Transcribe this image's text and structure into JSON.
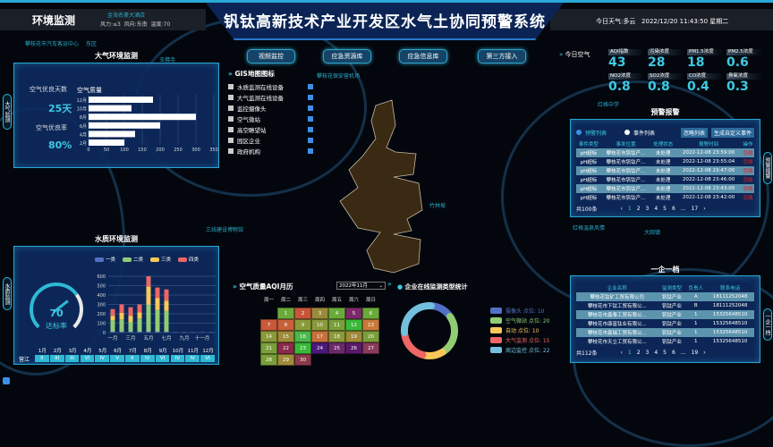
{
  "header": {
    "section": "环境监测",
    "weather": "风力:≤3  风向:东南  温度:70",
    "title": "钒钛高新技术产业开发区水气土协同预警系统",
    "today": "今日天气:多云   2022/12/20 11:43:50 星期二"
  },
  "nav": [
    "视频监控",
    "应急资源库",
    "应急信息库",
    "第三方接入"
  ],
  "gis": {
    "title": "GIS地图图标",
    "items": [
      "水质监测在线设备",
      "大气监测在线设备",
      "监控摄像头",
      "空气微站",
      "高空瞭望站",
      "园区企业",
      "政府机构"
    ]
  },
  "air_panel": {
    "title": "大气环境监测",
    "side_tab": "大气监测",
    "good_days_label": "空气优良天数",
    "good_days": "25天",
    "good_rate_label": "空气优良率",
    "good_rate": "80%"
  },
  "chart_data": [
    {
      "type": "bar",
      "orientation": "horizontal",
      "title": "空气质量",
      "categories": [
        "12月",
        "10月",
        "8月",
        "6月",
        "4月",
        "2月"
      ],
      "values": [
        180,
        120,
        300,
        200,
        130,
        100
      ],
      "xlim": [
        0,
        350
      ],
      "xticks": [
        "0",
        "50",
        "100",
        "150",
        "200",
        "250",
        "300",
        "350"
      ],
      "grid": true
    },
    {
      "type": "bar",
      "stacked": true,
      "categories": [
        "1月",
        "2月",
        "3月",
        "4月",
        "5月",
        "6月",
        "7月",
        "8月",
        "9月",
        "10月",
        "11月",
        "12月"
      ],
      "xtick_labels": [
        "一月",
        "三月",
        "五月",
        "七月",
        "九月",
        "十一月"
      ],
      "ylim": [
        0,
        600
      ],
      "yticks": [
        "0",
        "100",
        "200",
        "300",
        "400",
        "500",
        "600"
      ],
      "legend": "top",
      "series": [
        {
          "name": "一类",
          "color": "#5470c6",
          "values": [
            10,
            10,
            10,
            10,
            10,
            10,
            10,
            5,
            5,
            5,
            5,
            5
          ]
        },
        {
          "name": "二类",
          "color": "#91cc75",
          "values": [
            120,
            130,
            100,
            140,
            290,
            230,
            220,
            0,
            0,
            0,
            0,
            0
          ]
        },
        {
          "name": "三类",
          "color": "#fac858",
          "values": [
            50,
            70,
            70,
            65,
            190,
            130,
            110,
            0,
            0,
            0,
            0,
            0
          ]
        },
        {
          "name": "四类",
          "color": "#ee6666",
          "values": [
            70,
            90,
            90,
            85,
            110,
            110,
            120,
            0,
            0,
            0,
            0,
            0
          ]
        }
      ]
    },
    {
      "type": "pie",
      "donut": true,
      "title": "企业在线监测类型统计",
      "legend": "right",
      "categories": [
        "摄像头",
        "空气微站",
        "自动",
        "大气监测",
        "周边监控"
      ],
      "values": [
        10,
        20,
        10,
        15,
        22
      ],
      "labels": [
        "摄像头 点位: 10",
        "空气微站 点位: 20",
        "自动 点位: 10",
        "大气监测 点位: 15",
        "周边监控 点位: 22"
      ],
      "colors": [
        "#5470c6",
        "#91cc75",
        "#fac858",
        "#ee6666",
        "#73c0de"
      ]
    }
  ],
  "water_panel": {
    "title": "水质环境监测",
    "side_tab": "水质监测",
    "gauge_value": 70,
    "gauge_max": 100,
    "gauge_label": "达标率",
    "row_name": "营江",
    "months": [
      "1月",
      "2月",
      "3月",
      "4月",
      "5月",
      "6月",
      "7月",
      "8月",
      "9月",
      "10月",
      "11月",
      "12月"
    ],
    "grades": [
      "II",
      "III",
      "III",
      "VI",
      "IV",
      "V",
      "II",
      "IV",
      "VI",
      "IV",
      "IV",
      "VI"
    ]
  },
  "calendar": {
    "title": "空气质量AQI月历",
    "month": "2022年11月",
    "weekdays": [
      "周一",
      "周二",
      "周三",
      "周四",
      "周五",
      "周六",
      "周日"
    ],
    "first_weekday": 1,
    "days": 30,
    "colors": [
      "#6aaa3a",
      "#c8553a",
      "#9a8a3a",
      "#6aaa3a",
      "#7a2a6a",
      "#6aaa3a",
      "#c85a3a",
      "#c8603a",
      "#8a9a3a",
      "#8a9a3a",
      "#7a9e3a",
      "#3ab83a",
      "#c87a3a",
      "#8a9a3a",
      "#a08a3a",
      "#4ab84a",
      "#c8703a",
      "#8a9a3a",
      "#a08a3a",
      "#7a9e3a",
      "#7a9e3a",
      "#8a2a4a",
      "#3ab83a",
      "#4a1a7a",
      "#6a2a6a",
      "#5a1a6a",
      "#8a3a5a",
      "#7a9e3a",
      "#a08a3a",
      "#8a3a4a"
    ]
  },
  "today_air": {
    "title": "今日空气",
    "items": [
      {
        "label": "AQI指数",
        "value": "43"
      },
      {
        "label": "污染浓度",
        "value": "28"
      },
      {
        "label": "PM1.5浓度",
        "value": "18"
      },
      {
        "label": "PM2.5浓度",
        "value": "0.6"
      },
      {
        "label": "NO2浓度",
        "value": "0.8"
      },
      {
        "label": "SO2浓度",
        "value": "0.8"
      },
      {
        "label": "CO浓度",
        "value": "0.4"
      },
      {
        "label": "臭氧浓度",
        "value": "0.3"
      }
    ]
  },
  "alarm": {
    "title": "预警报警",
    "side_tab": "预警报警",
    "radio": [
      "预警列表",
      "事件列表"
    ],
    "buttons": [
      "忽略列表",
      "生成自定义事件"
    ],
    "columns": [
      "事件类型",
      "事发位置",
      "处理状态",
      "报警时间",
      "操作"
    ],
    "rows": [
      [
        "pH超标",
        "攀枝花市钒钛产...",
        "未处理",
        "2022-12-08 23:59:00",
        "忽略"
      ],
      [
        "pH超标",
        "攀枝花市钒钛产...",
        "未处理",
        "2022-12-08 23:55:04",
        "忽略"
      ],
      [
        "pH超标",
        "攀枝花市钒钛产...",
        "未处理",
        "2022-12-08 23:47:00",
        "忽略"
      ],
      [
        "pH超标",
        "攀枝花市钒钛产...",
        "未处理",
        "2022-12-08 23:46:00",
        "忽略"
      ],
      [
        "pH超标",
        "攀枝花市钒钛产...",
        "未处理",
        "2022-12-08 23:43:00",
        "忽略"
      ],
      [
        "pH超标",
        "攀枝花市钒钛产...",
        "未处理",
        "2022-12-08 23:42:00",
        "忽略"
      ]
    ],
    "total": "共100条",
    "pages": [
      "1",
      "2",
      "3",
      "4",
      "5",
      "6",
      "...",
      "17"
    ]
  },
  "enterprise": {
    "title": "一企一档",
    "side_tab": "一企一档",
    "columns": [
      "企业名称",
      "监测类型",
      "负责人",
      "联系电话"
    ],
    "rows": [
      [
        "攀枝花钛矿工贸有限公司",
        "钒钛产业",
        "A",
        "18111252048"
      ],
      [
        "攀枝花市下钛工贸有限公...",
        "钒钛产业",
        "B",
        "18111252048"
      ],
      [
        "攀枝花市鑫泰工贸有限公...",
        "钒钛产业",
        "1",
        "15325648510"
      ],
      [
        "攀枝花市康富钛业有限公...",
        "钒钛产业",
        "1",
        "15325648510"
      ],
      [
        "攀枝花市鑫瑞工贸有限公...",
        "钒钛产业",
        "1",
        "15325648510"
      ],
      [
        "攀枝花市天立工贸有限公...",
        "钒钛产业",
        "1",
        "15325648510"
      ]
    ],
    "total": "共112条",
    "pages": [
      "1",
      "2",
      "3",
      "4",
      "5",
      "6",
      "...",
      "19"
    ]
  },
  "map_labels": [
    "攀枝花市汽车客运中心",
    "东区",
    "玉佛寺",
    "攀枝花保安营机场",
    "红格中学",
    "红格温泉风情",
    "大田镇",
    "金海名豪大酒店",
    "竹林坡",
    "三线建设博物馆"
  ]
}
